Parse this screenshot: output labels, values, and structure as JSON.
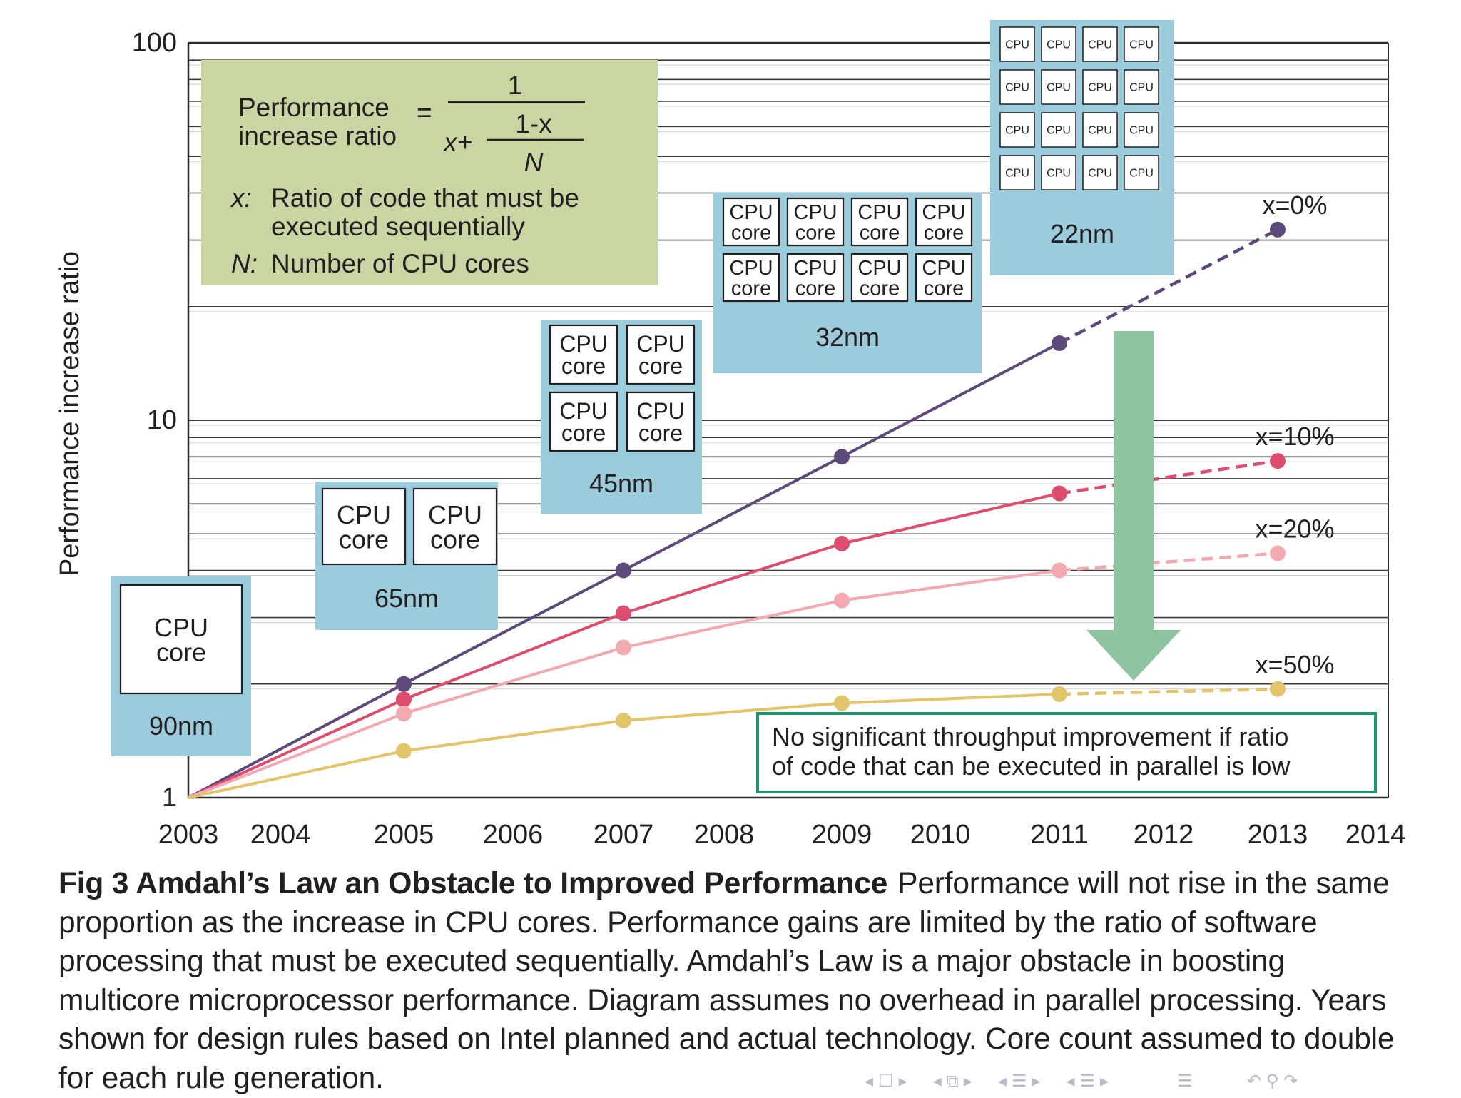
{
  "chart_data": {
    "type": "line",
    "ylabel": "Performance increase ratio",
    "xlabel": "",
    "y_scale": "log",
    "ylim": [
      1,
      100
    ],
    "xlim": [
      2003,
      2014
    ],
    "y_ticks": [
      "1",
      "10",
      "100"
    ],
    "x_ticks": [
      "2003",
      "2004",
      "2005",
      "2006",
      "2007",
      "2008",
      "2009",
      "2010",
      "2011",
      "2012",
      "2013",
      "2014"
    ],
    "series": [
      {
        "name": "x=0%",
        "color": "#5e4a7a",
        "points": [
          [
            2003,
            1
          ],
          [
            2005,
            2
          ],
          [
            2007,
            4
          ],
          [
            2009,
            8
          ],
          [
            2011,
            16
          ],
          [
            2013,
            32
          ]
        ],
        "dashed_from_index": 4
      },
      {
        "name": "x=10%",
        "color": "#dc4d6e",
        "points": [
          [
            2003,
            1
          ],
          [
            2005,
            1.82
          ],
          [
            2007,
            3.08
          ],
          [
            2009,
            4.71
          ],
          [
            2011,
            6.4
          ],
          [
            2013,
            7.8
          ]
        ],
        "dashed_from_index": 4
      },
      {
        "name": "x=20%",
        "color": "#f2a9b0",
        "points": [
          [
            2003,
            1
          ],
          [
            2005,
            1.67
          ],
          [
            2007,
            2.5
          ],
          [
            2009,
            3.33
          ],
          [
            2011,
            4.0
          ],
          [
            2013,
            4.44
          ]
        ],
        "dashed_from_index": 4
      },
      {
        "name": "x=50%",
        "color": "#e2c46a",
        "points": [
          [
            2003,
            1
          ],
          [
            2005,
            1.33
          ],
          [
            2007,
            1.6
          ],
          [
            2009,
            1.78
          ],
          [
            2011,
            1.88
          ],
          [
            2013,
            1.94
          ]
        ],
        "dashed_from_index": 4
      }
    ],
    "formula_box": {
      "lhs_line1": "Performance",
      "lhs_line2": "increase ratio",
      "equals": "=",
      "numerator": "1",
      "inner_prefix": "x+",
      "inner_numerator": "1-x",
      "inner_denominator": "N",
      "def_x_symbol": "x:",
      "def_x_line1": "Ratio of code that must be",
      "def_x_line2": "executed sequentially",
      "def_n_symbol": "N:",
      "def_n_text": "Number of CPU cores"
    },
    "process_nodes": [
      {
        "year": 2003,
        "label": "90nm",
        "cores": 1,
        "core_text": [
          "CPU",
          "core"
        ]
      },
      {
        "year": 2005,
        "label": "65nm",
        "cores": 2,
        "core_text": [
          "CPU",
          "core"
        ]
      },
      {
        "year": 2007,
        "label": "45nm",
        "cores": 4,
        "core_text": [
          "CPU",
          "core"
        ]
      },
      {
        "year": 2009,
        "label": "32nm",
        "cores": 8,
        "core_text": [
          "CPU",
          "core"
        ]
      },
      {
        "year": 2011,
        "label": "22nm",
        "cores": 16,
        "core_text": [
          "CPU"
        ]
      }
    ],
    "annotation": "No significant throughput improvement if ratio of code that can be executed in parallel is low",
    "annotation_line1": "No significant throughput improvement if ratio",
    "annotation_line2": "of code that can be executed in parallel is low",
    "colors": {
      "node_box": "#9ccbdb",
      "formula_box": "#c9d6a3",
      "arrow": "#8fc4a0",
      "annotation_border": "#1e9670",
      "grid": "#2a2a2a"
    }
  },
  "caption": {
    "label": "Fig 3  Amdahl’s Law an Obstacle to Improved Performance",
    "body": "Performance will not rise in the same proportion as the increase in CPU cores. Performance gains are limited by the ratio of software processing that must be executed sequentially. Amdahl’s Law is a major obstacle in boosting multicore microprocessor performance. Diagram assumes no overhead in parallel processing. Years shown for design rules based on Intel planned and actual technology. Core count assumed to double for each rule generation."
  },
  "nav": {
    "prev_frame": "◂",
    "frame_icon": "☐",
    "next_frame": "▸",
    "prev_sub": "◂",
    "sub_icon": "⧉",
    "next_sub": "▸",
    "prev_sec": "◂",
    "sec_icon": "☰",
    "next_sec": "▸",
    "prev_subsec": "◂",
    "subsec_icon": "☰",
    "next_subsec": "▸",
    "outline_icon": "☰",
    "back_icon": "↶",
    "search_icon": "⚲",
    "forward_icon": "↷"
  }
}
